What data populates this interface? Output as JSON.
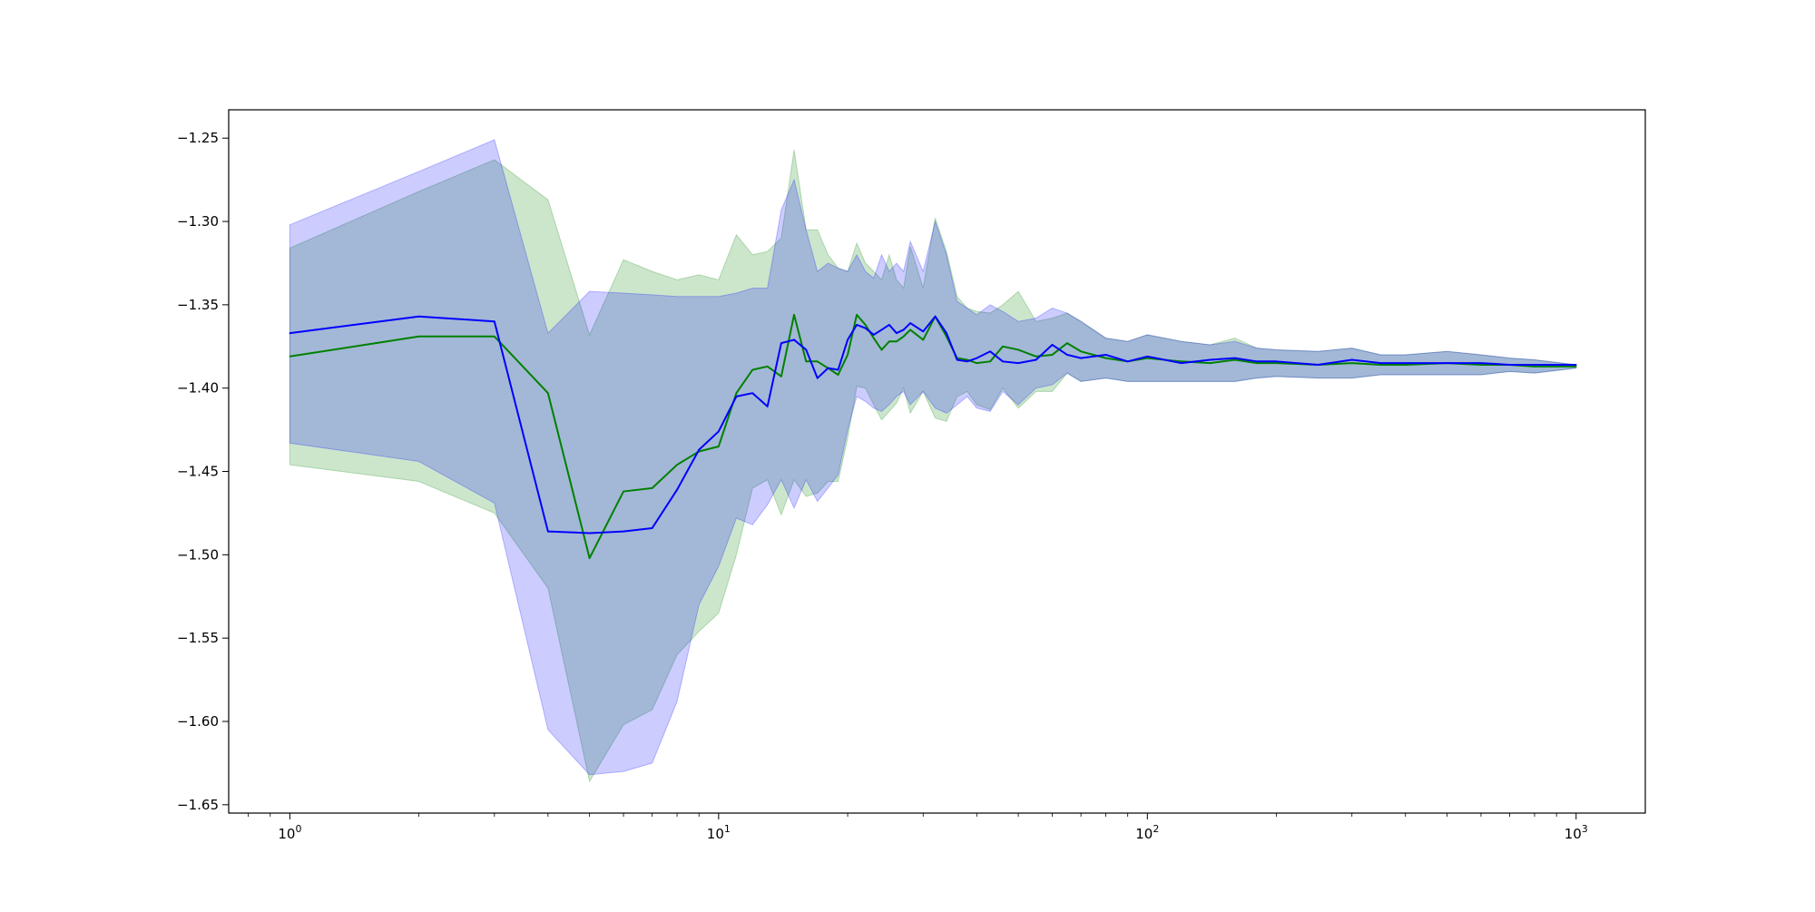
{
  "chart_data": {
    "type": "line",
    "title": "",
    "xlabel": "",
    "ylabel": "",
    "xscale": "log",
    "xlim": [
      0.72,
      1450
    ],
    "ylim": [
      -1.655,
      -1.233
    ],
    "grid": false,
    "legend": "none",
    "x_ticks": [
      {
        "base": "10",
        "exp": "0",
        "value": 1
      },
      {
        "base": "10",
        "exp": "1",
        "value": 10
      },
      {
        "base": "10",
        "exp": "2",
        "value": 100
      },
      {
        "base": "10",
        "exp": "3",
        "value": 1000
      }
    ],
    "y_ticks": [
      {
        "label": "−1.25",
        "value": -1.25
      },
      {
        "label": "−1.30",
        "value": -1.3
      },
      {
        "label": "−1.35",
        "value": -1.35
      },
      {
        "label": "−1.40",
        "value": -1.4
      },
      {
        "label": "−1.45",
        "value": -1.45
      },
      {
        "label": "−1.50",
        "value": -1.5
      },
      {
        "label": "−1.55",
        "value": -1.55
      },
      {
        "label": "−1.60",
        "value": -1.6
      },
      {
        "label": "−1.65",
        "value": -1.65
      }
    ],
    "series": [
      {
        "color": "#008000",
        "band_color": "#008000",
        "band_opacity": 0.2,
        "x": [
          1,
          2,
          3,
          4,
          5,
          6,
          7,
          8,
          9,
          10,
          11,
          12,
          13,
          14,
          15,
          16,
          17,
          18,
          19,
          20,
          21,
          22,
          23,
          24,
          25,
          26,
          27,
          28,
          30,
          32,
          34,
          36,
          38,
          40,
          43,
          46,
          50,
          55,
          60,
          65,
          70,
          80,
          90,
          100,
          120,
          140,
          160,
          180,
          200,
          250,
          300,
          350,
          400,
          500,
          600,
          700,
          800,
          1000
        ],
        "y": [
          -1.381,
          -1.369,
          -1.369,
          -1.403,
          -1.502,
          -1.462,
          -1.46,
          -1.446,
          -1.438,
          -1.435,
          -1.403,
          -1.389,
          -1.387,
          -1.393,
          -1.356,
          -1.384,
          -1.384,
          -1.388,
          -1.392,
          -1.38,
          -1.356,
          -1.362,
          -1.37,
          -1.377,
          -1.372,
          -1.372,
          -1.369,
          -1.365,
          -1.371,
          -1.357,
          -1.369,
          -1.382,
          -1.383,
          -1.385,
          -1.384,
          -1.375,
          -1.377,
          -1.381,
          -1.38,
          -1.373,
          -1.378,
          -1.382,
          -1.384,
          -1.382,
          -1.384,
          -1.385,
          -1.383,
          -1.385,
          -1.385,
          -1.386,
          -1.385,
          -1.386,
          -1.386,
          -1.385,
          -1.386,
          -1.386,
          -1.387,
          -1.387
        ],
        "upper": [
          -1.316,
          -1.282,
          -1.263,
          -1.287,
          -1.368,
          -1.323,
          -1.33,
          -1.335,
          -1.332,
          -1.335,
          -1.308,
          -1.32,
          -1.318,
          -1.31,
          -1.257,
          -1.305,
          -1.305,
          -1.32,
          -1.328,
          -1.33,
          -1.313,
          -1.325,
          -1.33,
          -1.335,
          -1.32,
          -1.335,
          -1.34,
          -1.315,
          -1.34,
          -1.298,
          -1.318,
          -1.345,
          -1.352,
          -1.354,
          -1.355,
          -1.35,
          -1.342,
          -1.36,
          -1.358,
          -1.355,
          -1.36,
          -1.37,
          -1.372,
          -1.368,
          -1.372,
          -1.374,
          -1.37,
          -1.376,
          -1.377,
          -1.378,
          -1.376,
          -1.38,
          -1.38,
          -1.378,
          -1.38,
          -1.382,
          -1.383,
          -1.386
        ],
        "lower": [
          -1.446,
          -1.456,
          -1.475,
          -1.52,
          -1.636,
          -1.602,
          -1.593,
          -1.56,
          -1.546,
          -1.535,
          -1.5,
          -1.46,
          -1.455,
          -1.476,
          -1.455,
          -1.465,
          -1.463,
          -1.456,
          -1.456,
          -1.43,
          -1.399,
          -1.4,
          -1.41,
          -1.419,
          -1.414,
          -1.409,
          -1.4,
          -1.415,
          -1.402,
          -1.418,
          -1.42,
          -1.405,
          -1.402,
          -1.41,
          -1.413,
          -1.4,
          -1.412,
          -1.402,
          -1.402,
          -1.391,
          -1.396,
          -1.394,
          -1.396,
          -1.396,
          -1.396,
          -1.396,
          -1.396,
          -1.394,
          -1.393,
          -1.394,
          -1.394,
          -1.392,
          -1.392,
          -1.392,
          -1.392,
          -1.39,
          -1.391,
          -1.388
        ]
      },
      {
        "color": "#0000ff",
        "band_color": "#0000ff",
        "band_opacity": 0.2,
        "x": [
          1,
          2,
          3,
          4,
          5,
          6,
          7,
          8,
          9,
          10,
          11,
          12,
          13,
          14,
          15,
          16,
          17,
          18,
          19,
          20,
          21,
          22,
          23,
          24,
          25,
          26,
          27,
          28,
          30,
          32,
          34,
          36,
          38,
          40,
          43,
          46,
          50,
          55,
          60,
          65,
          70,
          80,
          90,
          100,
          120,
          140,
          160,
          180,
          200,
          250,
          300,
          350,
          400,
          500,
          600,
          700,
          800,
          1000
        ],
        "y": [
          -1.367,
          -1.357,
          -1.36,
          -1.486,
          -1.487,
          -1.486,
          -1.484,
          -1.461,
          -1.437,
          -1.426,
          -1.405,
          -1.403,
          -1.411,
          -1.373,
          -1.371,
          -1.377,
          -1.394,
          -1.388,
          -1.389,
          -1.371,
          -1.362,
          -1.364,
          -1.368,
          -1.365,
          -1.362,
          -1.367,
          -1.365,
          -1.361,
          -1.366,
          -1.357,
          -1.367,
          -1.383,
          -1.384,
          -1.382,
          -1.378,
          -1.384,
          -1.385,
          -1.383,
          -1.374,
          -1.38,
          -1.382,
          -1.38,
          -1.384,
          -1.381,
          -1.385,
          -1.383,
          -1.382,
          -1.384,
          -1.384,
          -1.386,
          -1.383,
          -1.385,
          -1.385,
          -1.385,
          -1.385,
          -1.386,
          -1.386,
          -1.386
        ],
        "upper": [
          -1.302,
          -1.27,
          -1.251,
          -1.367,
          -1.342,
          -1.343,
          -1.344,
          -1.345,
          -1.345,
          -1.345,
          -1.343,
          -1.34,
          -1.34,
          -1.293,
          -1.275,
          -1.305,
          -1.33,
          -1.325,
          -1.328,
          -1.33,
          -1.32,
          -1.33,
          -1.334,
          -1.32,
          -1.33,
          -1.325,
          -1.33,
          -1.312,
          -1.33,
          -1.3,
          -1.32,
          -1.348,
          -1.352,
          -1.356,
          -1.35,
          -1.354,
          -1.36,
          -1.358,
          -1.352,
          -1.355,
          -1.36,
          -1.37,
          -1.372,
          -1.368,
          -1.372,
          -1.374,
          -1.372,
          -1.376,
          -1.377,
          -1.378,
          -1.376,
          -1.38,
          -1.38,
          -1.378,
          -1.38,
          -1.382,
          -1.383,
          -1.386
        ],
        "lower": [
          -1.433,
          -1.444,
          -1.469,
          -1.605,
          -1.632,
          -1.63,
          -1.625,
          -1.588,
          -1.53,
          -1.507,
          -1.478,
          -1.482,
          -1.47,
          -1.455,
          -1.472,
          -1.455,
          -1.468,
          -1.46,
          -1.452,
          -1.425,
          -1.405,
          -1.408,
          -1.412,
          -1.414,
          -1.41,
          -1.405,
          -1.402,
          -1.41,
          -1.402,
          -1.412,
          -1.415,
          -1.41,
          -1.405,
          -1.412,
          -1.414,
          -1.402,
          -1.41,
          -1.4,
          -1.398,
          -1.391,
          -1.396,
          -1.394,
          -1.396,
          -1.396,
          -1.396,
          -1.396,
          -1.396,
          -1.394,
          -1.393,
          -1.394,
          -1.394,
          -1.392,
          -1.392,
          -1.392,
          -1.392,
          -1.39,
          -1.391,
          -1.388
        ]
      }
    ]
  }
}
